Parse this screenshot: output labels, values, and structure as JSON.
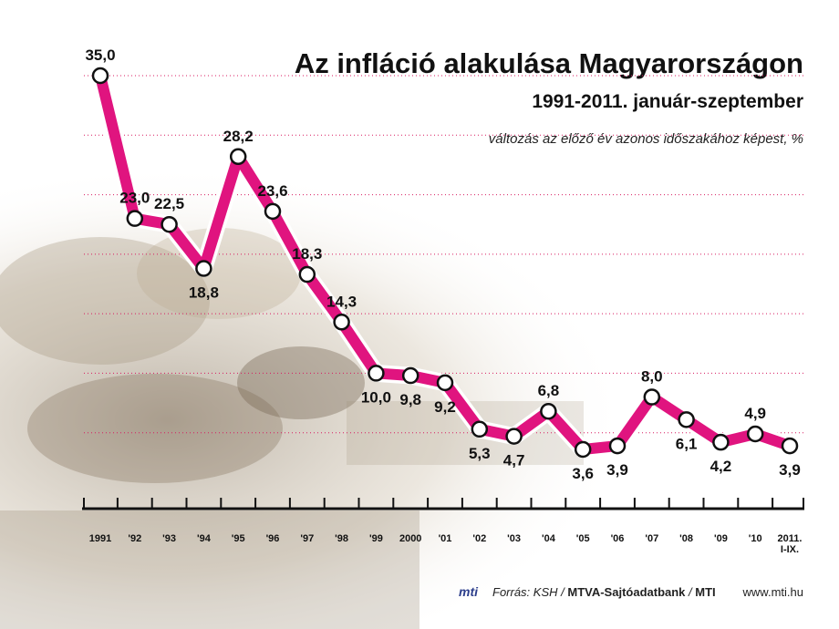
{
  "chart_data": {
    "type": "line",
    "title": "Az infláció alakulása Magyarországon",
    "subtitle": "1991-2011. január-szeptember",
    "unit_note": "változás az előző év azonos időszakához képest, %",
    "categories": [
      "1991",
      "'92",
      "'93",
      "'94",
      "'95",
      "'96",
      "'97",
      "'98",
      "'99",
      "2000",
      "'01",
      "'02",
      "'03",
      "'04",
      "'05",
      "'06",
      "'07",
      "'08",
      "'09",
      "'10",
      "2011.\nI-IX."
    ],
    "values": [
      35.0,
      23.0,
      22.5,
      18.8,
      28.2,
      23.6,
      18.3,
      14.3,
      10.0,
      9.8,
      9.2,
      5.3,
      4.7,
      6.8,
      3.6,
      3.9,
      8.0,
      6.1,
      4.2,
      4.9,
      3.9
    ],
    "value_labels": [
      "35,0",
      "23,0",
      "22,5",
      "18,8",
      "28,2",
      "23,6",
      "18,3",
      "14,3",
      "10,0",
      "9,8",
      "9,2",
      "5,3",
      "4,7",
      "6,8",
      "3,6",
      "3,9",
      "8,0",
      "6,1",
      "4,2",
      "4,9",
      "3,9"
    ],
    "ylim": [
      0,
      35
    ],
    "grid": true,
    "colors": {
      "line": "#e0147f",
      "marker_fill": "#ffffff",
      "marker_stroke": "#111111",
      "grid": "#d81b60"
    }
  },
  "footer": {
    "logo": "mti",
    "source_prefix": "Forrás: KSH / ",
    "source_bold_1": "MTVA-Sajtóadatbank",
    "source_sep": " / ",
    "source_bold_2": "MTI",
    "website": "www.mti.hu"
  }
}
